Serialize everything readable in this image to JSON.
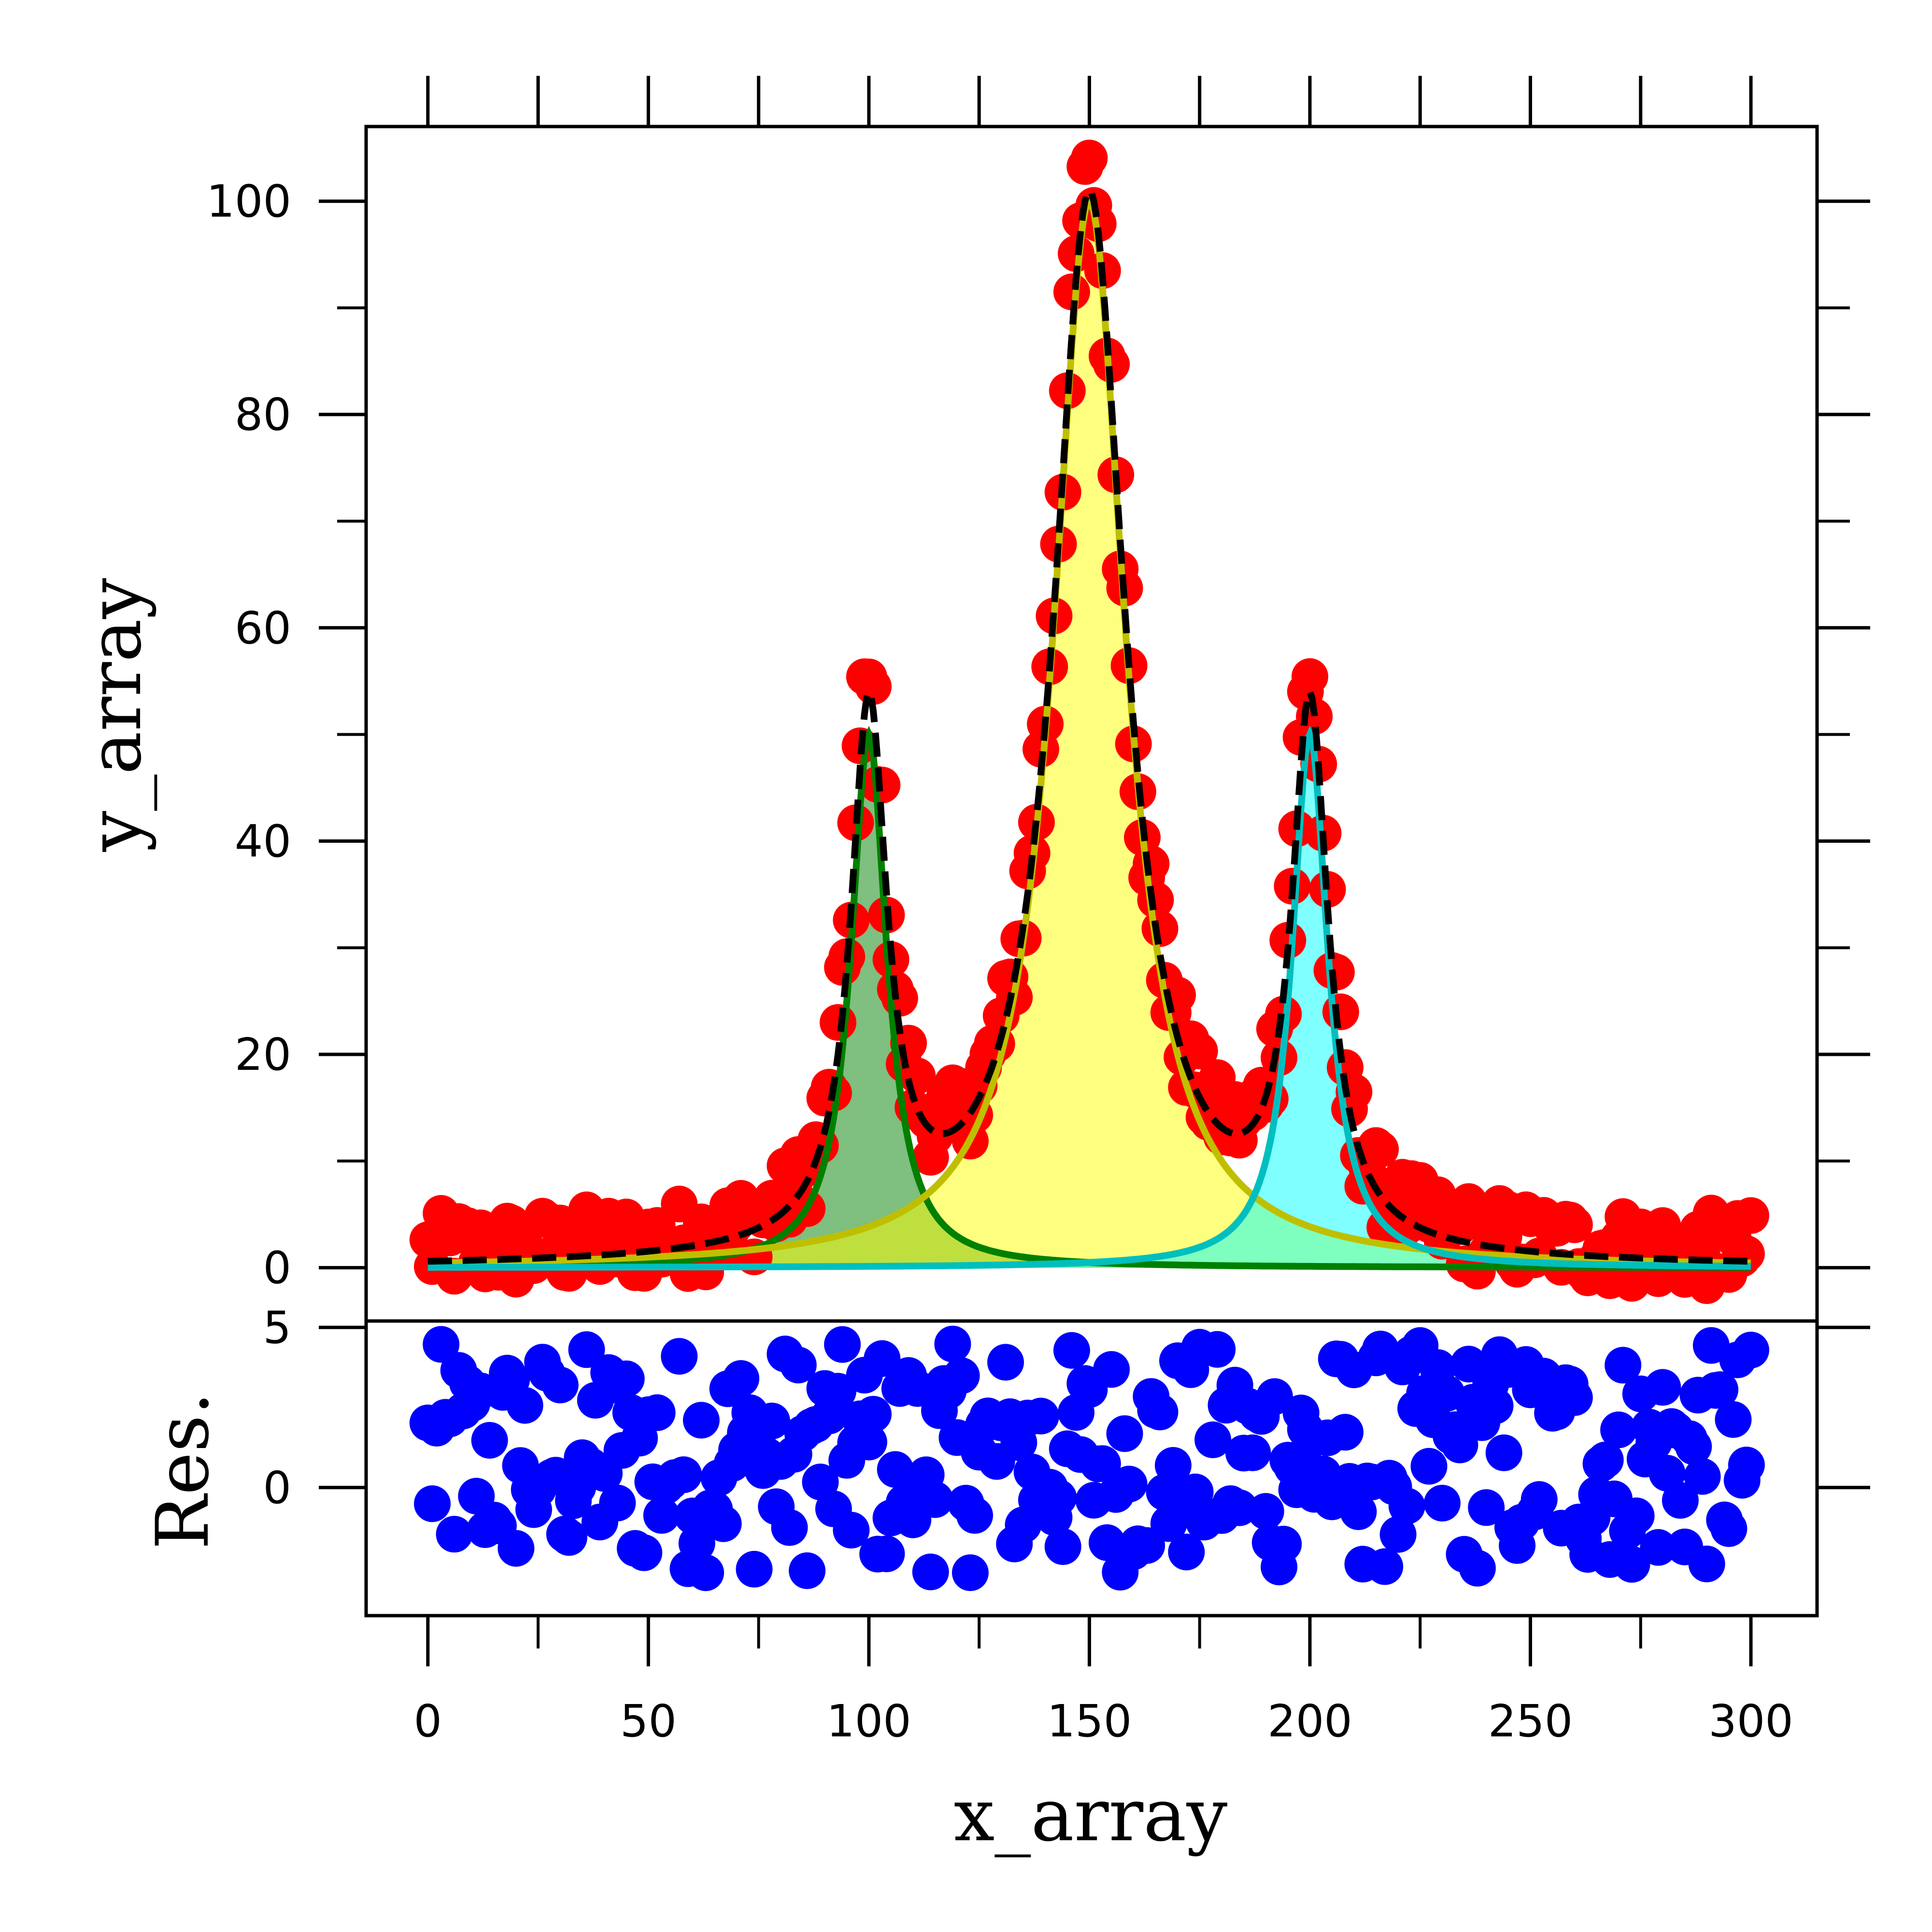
{
  "chart_data": [
    {
      "panel": "main",
      "type": "scatter",
      "xlabel": "",
      "ylabel": "y_array",
      "xlim": [
        -14,
        315
      ],
      "ylim": [
        -5,
        107
      ],
      "x_ticks": [
        0,
        25,
        50,
        75,
        100,
        125,
        150,
        175,
        200,
        225,
        250,
        275,
        300
      ],
      "y_ticks_major": [
        0,
        20,
        40,
        60,
        80,
        100
      ],
      "y_tick_labels": [
        "0",
        "20",
        "40",
        "60",
        "80",
        "100"
      ],
      "y_ticks_minor": [
        10,
        30,
        50,
        70,
        90
      ],
      "grid": false,
      "points_color": "#ff0000",
      "model": {
        "profile": "lorentzian",
        "baseline": 0,
        "components": [
          {
            "center": 100,
            "amplitude": 50,
            "hwhm": 5,
            "color": "#008000",
            "fill": "#008000",
            "fill_opacity": 0.5
          },
          {
            "center": 150,
            "amplitude": 100,
            "hwhm": 10,
            "color": "#bfbf00",
            "fill": "#ffff00",
            "fill_opacity": 0.5
          },
          {
            "center": 200,
            "amplitude": 50,
            "hwhm": 5,
            "color": "#00bfbf",
            "fill": "#00ffff",
            "fill_opacity": 0.5
          }
        ],
        "total_fit_color": "#000000",
        "total_fit_style": "dashed"
      },
      "data_points": {
        "x_start": 0,
        "x_end": 300,
        "count": 301,
        "residual_amplitude": 3.6
      }
    },
    {
      "panel": "residuals",
      "type": "scatter",
      "xlabel": "x_array",
      "ylabel": "Res.",
      "xlim": [
        -14,
        315
      ],
      "ylim": [
        -4.0,
        5.2
      ],
      "x_ticks_major": [
        0,
        50,
        100,
        150,
        200,
        250,
        300
      ],
      "x_tick_labels": [
        "0",
        "50",
        "100",
        "150",
        "200",
        "250",
        "300"
      ],
      "x_ticks_minor": [
        25,
        75,
        125,
        175,
        225,
        275
      ],
      "y_ticks_major": [
        0,
        5
      ],
      "y_tick_labels": [
        "0",
        "5"
      ],
      "grid": false,
      "points_color": "#0000ff"
    }
  ]
}
